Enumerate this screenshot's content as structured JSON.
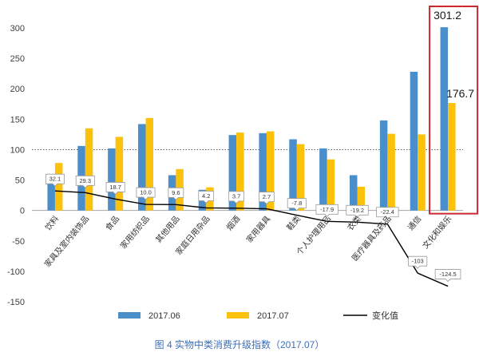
{
  "chart_data": {
    "type": "bar",
    "categories": [
      "饮料",
      "家具及室内装饰品",
      "食品",
      "家用纺织品",
      "其他用品",
      "家庭日用杂品",
      "烟酒",
      "家用器具",
      "鞋类",
      "个人护理用品",
      "衣类",
      "医疗器具及药品",
      "通信",
      "文化和娱乐"
    ],
    "series": [
      {
        "name": "2017.06",
        "type": "bar",
        "color": "#4a8ecb",
        "values": [
          46,
          106,
          102,
          142,
          58,
          34,
          124,
          127,
          117,
          102,
          58,
          148,
          228,
          301.2
        ]
      },
      {
        "name": "2017.07",
        "type": "bar",
        "color": "#fcc10a",
        "values": [
          78,
          135,
          121,
          152,
          68,
          38,
          128,
          130,
          109,
          84,
          39,
          126,
          125,
          176.7
        ]
      },
      {
        "name": "变化值",
        "type": "line",
        "color": "#000000",
        "values": [
          32.1,
          29.3,
          18.7,
          10.0,
          9.6,
          4.2,
          3.7,
          2.7,
          -7.8,
          -17.9,
          -19.2,
          -22.4,
          -103,
          -124.5
        ],
        "labels": [
          "32.1",
          "29.3",
          "18.7",
          "10.0",
          "9.6",
          "4.2",
          "3.7",
          "2.7",
          "-7.8",
          "-17.9",
          "-19.2",
          "-22.4",
          "-103",
          "-124.5"
        ]
      }
    ],
    "ylim": [
      -150,
      300
    ],
    "yticks": [
      300,
      250,
      200,
      150,
      100,
      50,
      0,
      -50,
      -100,
      -150
    ],
    "reference_line": 100,
    "grid": false,
    "legend": "bottom",
    "highlight": {
      "index": 13,
      "color": "#cc2a30",
      "labels": [
        "301.2",
        "176.7"
      ]
    },
    "caption": "图 4 实物中类消费升级指数（2017.07）",
    "caption_color": "#3d6fb5"
  }
}
